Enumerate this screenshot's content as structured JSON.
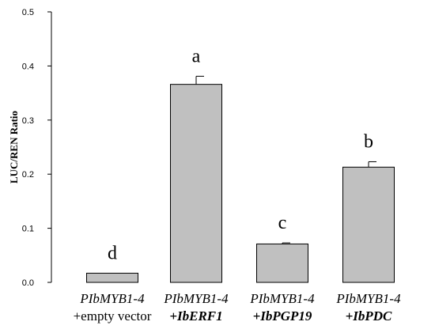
{
  "chart_data": {
    "type": "bar",
    "title": "",
    "ylabel": "LUC/REN Ratio",
    "ylim": [
      0,
      0.5
    ],
    "yticks": [
      "0.0",
      "0.1",
      "0.2",
      "0.3",
      "0.4",
      "0.5"
    ],
    "grid": false,
    "bar_color": "#c0c0c0",
    "categories": [
      {
        "line1": "PIbMYB1-4",
        "line2": "+empty vector",
        "line2_style": "plain"
      },
      {
        "line1": "PIbMYB1-4",
        "line2": "+IbERF1",
        "line2_style": "bold-italic"
      },
      {
        "line1": "PIbMYB1-4",
        "line2": "+IbPGP19",
        "line2_style": "bold-italic"
      },
      {
        "line1": "PIbMYB1-4",
        "line2": "+IbPDC",
        "line2_style": "bold-italic"
      }
    ],
    "values": [
      0.017,
      0.366,
      0.071,
      0.213
    ],
    "errors": [
      0.0,
      0.015,
      0.002,
      0.01
    ],
    "significance": [
      "d",
      "a",
      "c",
      "b"
    ]
  }
}
